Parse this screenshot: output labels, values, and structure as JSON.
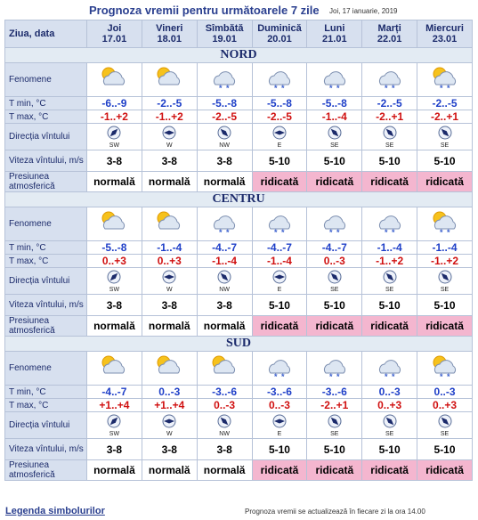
{
  "header": {
    "title": "Prognoza vremii pentru următoarele 7 zile",
    "date": "Joi, 17 ianuarie, 2019"
  },
  "table": {
    "corner": "Ziua, data",
    "days": [
      {
        "name": "Joi",
        "date": "17.01"
      },
      {
        "name": "Vineri",
        "date": "18.01"
      },
      {
        "name": "Sîmbătă",
        "date": "19.01"
      },
      {
        "name": "Duminică",
        "date": "20.01"
      },
      {
        "name": "Luni",
        "date": "21.01"
      },
      {
        "name": "Marți",
        "date": "22.01"
      },
      {
        "name": "Miercuri",
        "date": "23.01"
      }
    ],
    "row_labels": {
      "fenomene": "Fenomene",
      "tmin": "T min, °C",
      "tmax": "T max, °C",
      "wind_dir": "Direcția vîntului",
      "wind_speed": "Viteza vîntului, m/s",
      "pressure": "Presiunea atmosferică"
    },
    "sections": [
      {
        "name": "NORD",
        "tmin": [
          "-6..-9",
          "-2..-5",
          "-5..-8",
          "-5..-8",
          "-5..-8",
          "-2..-5",
          "-2..-5"
        ],
        "tmax": [
          "-1..+2",
          "-1..+2",
          "-2..-5",
          "-2..-5",
          "-1..-4",
          "-2..+1",
          "-2..+1"
        ],
        "wind_dir": [
          "SW",
          "W",
          "NW",
          "E",
          "SE",
          "SE",
          "SE"
        ],
        "wind_speed": [
          "3-8",
          "3-8",
          "3-8",
          "5-10",
          "5-10",
          "5-10",
          "5-10"
        ],
        "pressure": [
          "normală",
          "normală",
          "normală",
          "ridicată",
          "ridicată",
          "ridicată",
          "ridicată"
        ]
      },
      {
        "name": "CENTRU",
        "tmin": [
          "-5..-8",
          "-1..-4",
          "-4..-7",
          "-4..-7",
          "-4..-7",
          "-1..-4",
          "-1..-4"
        ],
        "tmax": [
          "0..+3",
          "0..+3",
          "-1..-4",
          "-1..-4",
          "0..-3",
          "-1..+2",
          "-1..+2"
        ],
        "wind_dir": [
          "SW",
          "W",
          "NW",
          "E",
          "SE",
          "SE",
          "SE"
        ],
        "wind_speed": [
          "3-8",
          "3-8",
          "3-8",
          "5-10",
          "5-10",
          "5-10",
          "5-10"
        ],
        "pressure": [
          "normală",
          "normală",
          "normală",
          "ridicată",
          "ridicată",
          "ridicată",
          "ridicată"
        ]
      },
      {
        "name": "SUD",
        "tmin": [
          "-4..-7",
          "0..-3",
          "-3..-6",
          "-3..-6",
          "-3..-6",
          "0..-3",
          "0..-3"
        ],
        "tmax": [
          "+1..+4",
          "+1..+4",
          "0..-3",
          "0..-3",
          "-2..+1",
          "0..+3",
          "0..+3"
        ],
        "wind_dir": [
          "SW",
          "W",
          "NW",
          "E",
          "SE",
          "SE",
          "SE"
        ],
        "wind_speed": [
          "3-8",
          "3-8",
          "3-8",
          "5-10",
          "5-10",
          "5-10",
          "5-10"
        ],
        "pressure": [
          "normală",
          "normală",
          "normală",
          "ridicată",
          "ridicată",
          "ridicată",
          "ridicată"
        ]
      }
    ]
  },
  "footer": {
    "legend": "Legenda simbolurilor",
    "note": "Prognoza vremii se actualizează în fiecare zi la ora 14.00"
  }
}
